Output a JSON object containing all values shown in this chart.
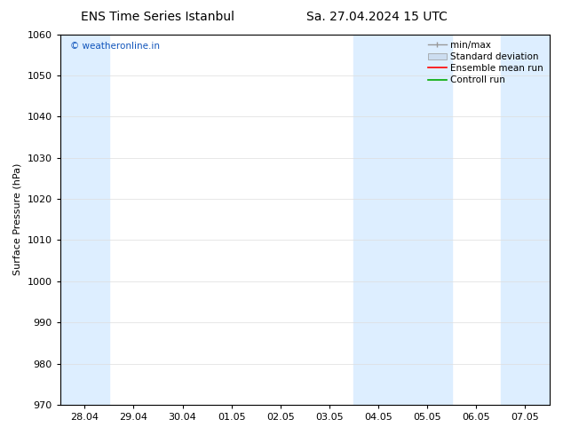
{
  "title_left": "ENS Time Series Istanbul",
  "title_right": "Sa. 27.04.2024 15 UTC",
  "ylabel": "Surface Pressure (hPa)",
  "ylim": [
    970,
    1060
  ],
  "yticks": [
    970,
    980,
    990,
    1000,
    1010,
    1020,
    1030,
    1040,
    1050,
    1060
  ],
  "xtick_labels": [
    "28.04",
    "29.04",
    "30.04",
    "01.05",
    "02.05",
    "03.05",
    "04.05",
    "05.05",
    "06.05",
    "07.05"
  ],
  "shaded_bands": [
    {
      "xmin": 0,
      "xmax": 1,
      "color": "#ddeeff"
    },
    {
      "xmin": 6,
      "xmax": 8,
      "color": "#ddeeff"
    },
    {
      "xmin": 9,
      "xmax": 10,
      "color": "#ddeeff"
    }
  ],
  "watermark": "© weatheronline.in",
  "watermark_color": "#1155bb",
  "bg_color": "#ffffff",
  "legend_labels": [
    "min/max",
    "Standard deviation",
    "Ensemble mean run",
    "Controll run"
  ],
  "minmax_color": "#999999",
  "std_color": "#ccddf0",
  "ensemble_color": "#ff0000",
  "control_color": "#00aa00",
  "tick_color": "#000000",
  "spine_color": "#000000",
  "grid_color": "#dddddd",
  "font_size": 8,
  "title_font_size": 10
}
